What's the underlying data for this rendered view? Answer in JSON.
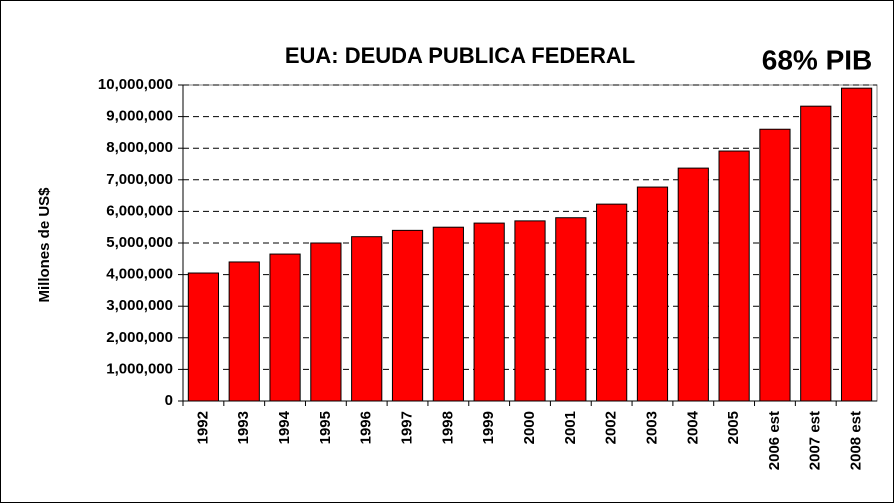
{
  "chart_data": {
    "type": "bar",
    "title": "EUA: DEUDA PUBLICA FEDERAL",
    "annotation": "68% PIB",
    "ylabel": "Millones de US$",
    "categories": [
      "1992",
      "1993",
      "1994",
      "1995",
      "1996",
      "1997",
      "1998",
      "1999",
      "2000",
      "2001",
      "2002",
      "2003",
      "2004",
      "2005",
      "2006 est",
      "2007 est",
      "2008 est"
    ],
    "values": [
      4050000,
      4400000,
      4650000,
      5000000,
      5200000,
      5400000,
      5500000,
      5630000,
      5700000,
      5800000,
      6230000,
      6770000,
      7370000,
      7910000,
      8600000,
      9330000,
      9900000
    ],
    "color": "#ff0000",
    "ylim": [
      0,
      10000000
    ],
    "yticks": [
      0,
      {
        "value": 1000000,
        "label": "1,000,000"
      },
      {
        "value": 2000000,
        "label": "2,000,000"
      },
      {
        "value": 3000000,
        "label": "3,000,000"
      },
      {
        "value": 4000000,
        "label": "4,000,000"
      },
      {
        "value": 5000000,
        "label": "5,000,000"
      },
      {
        "value": 6000000,
        "label": "6,000,000"
      },
      {
        "value": 7000000,
        "label": "7,000,000"
      },
      {
        "value": 8000000,
        "label": "8,000,000"
      },
      {
        "value": 9000000,
        "label": "9,000,000"
      },
      {
        "value": 10000000,
        "label": "10,000,000"
      }
    ],
    "grid": true
  }
}
